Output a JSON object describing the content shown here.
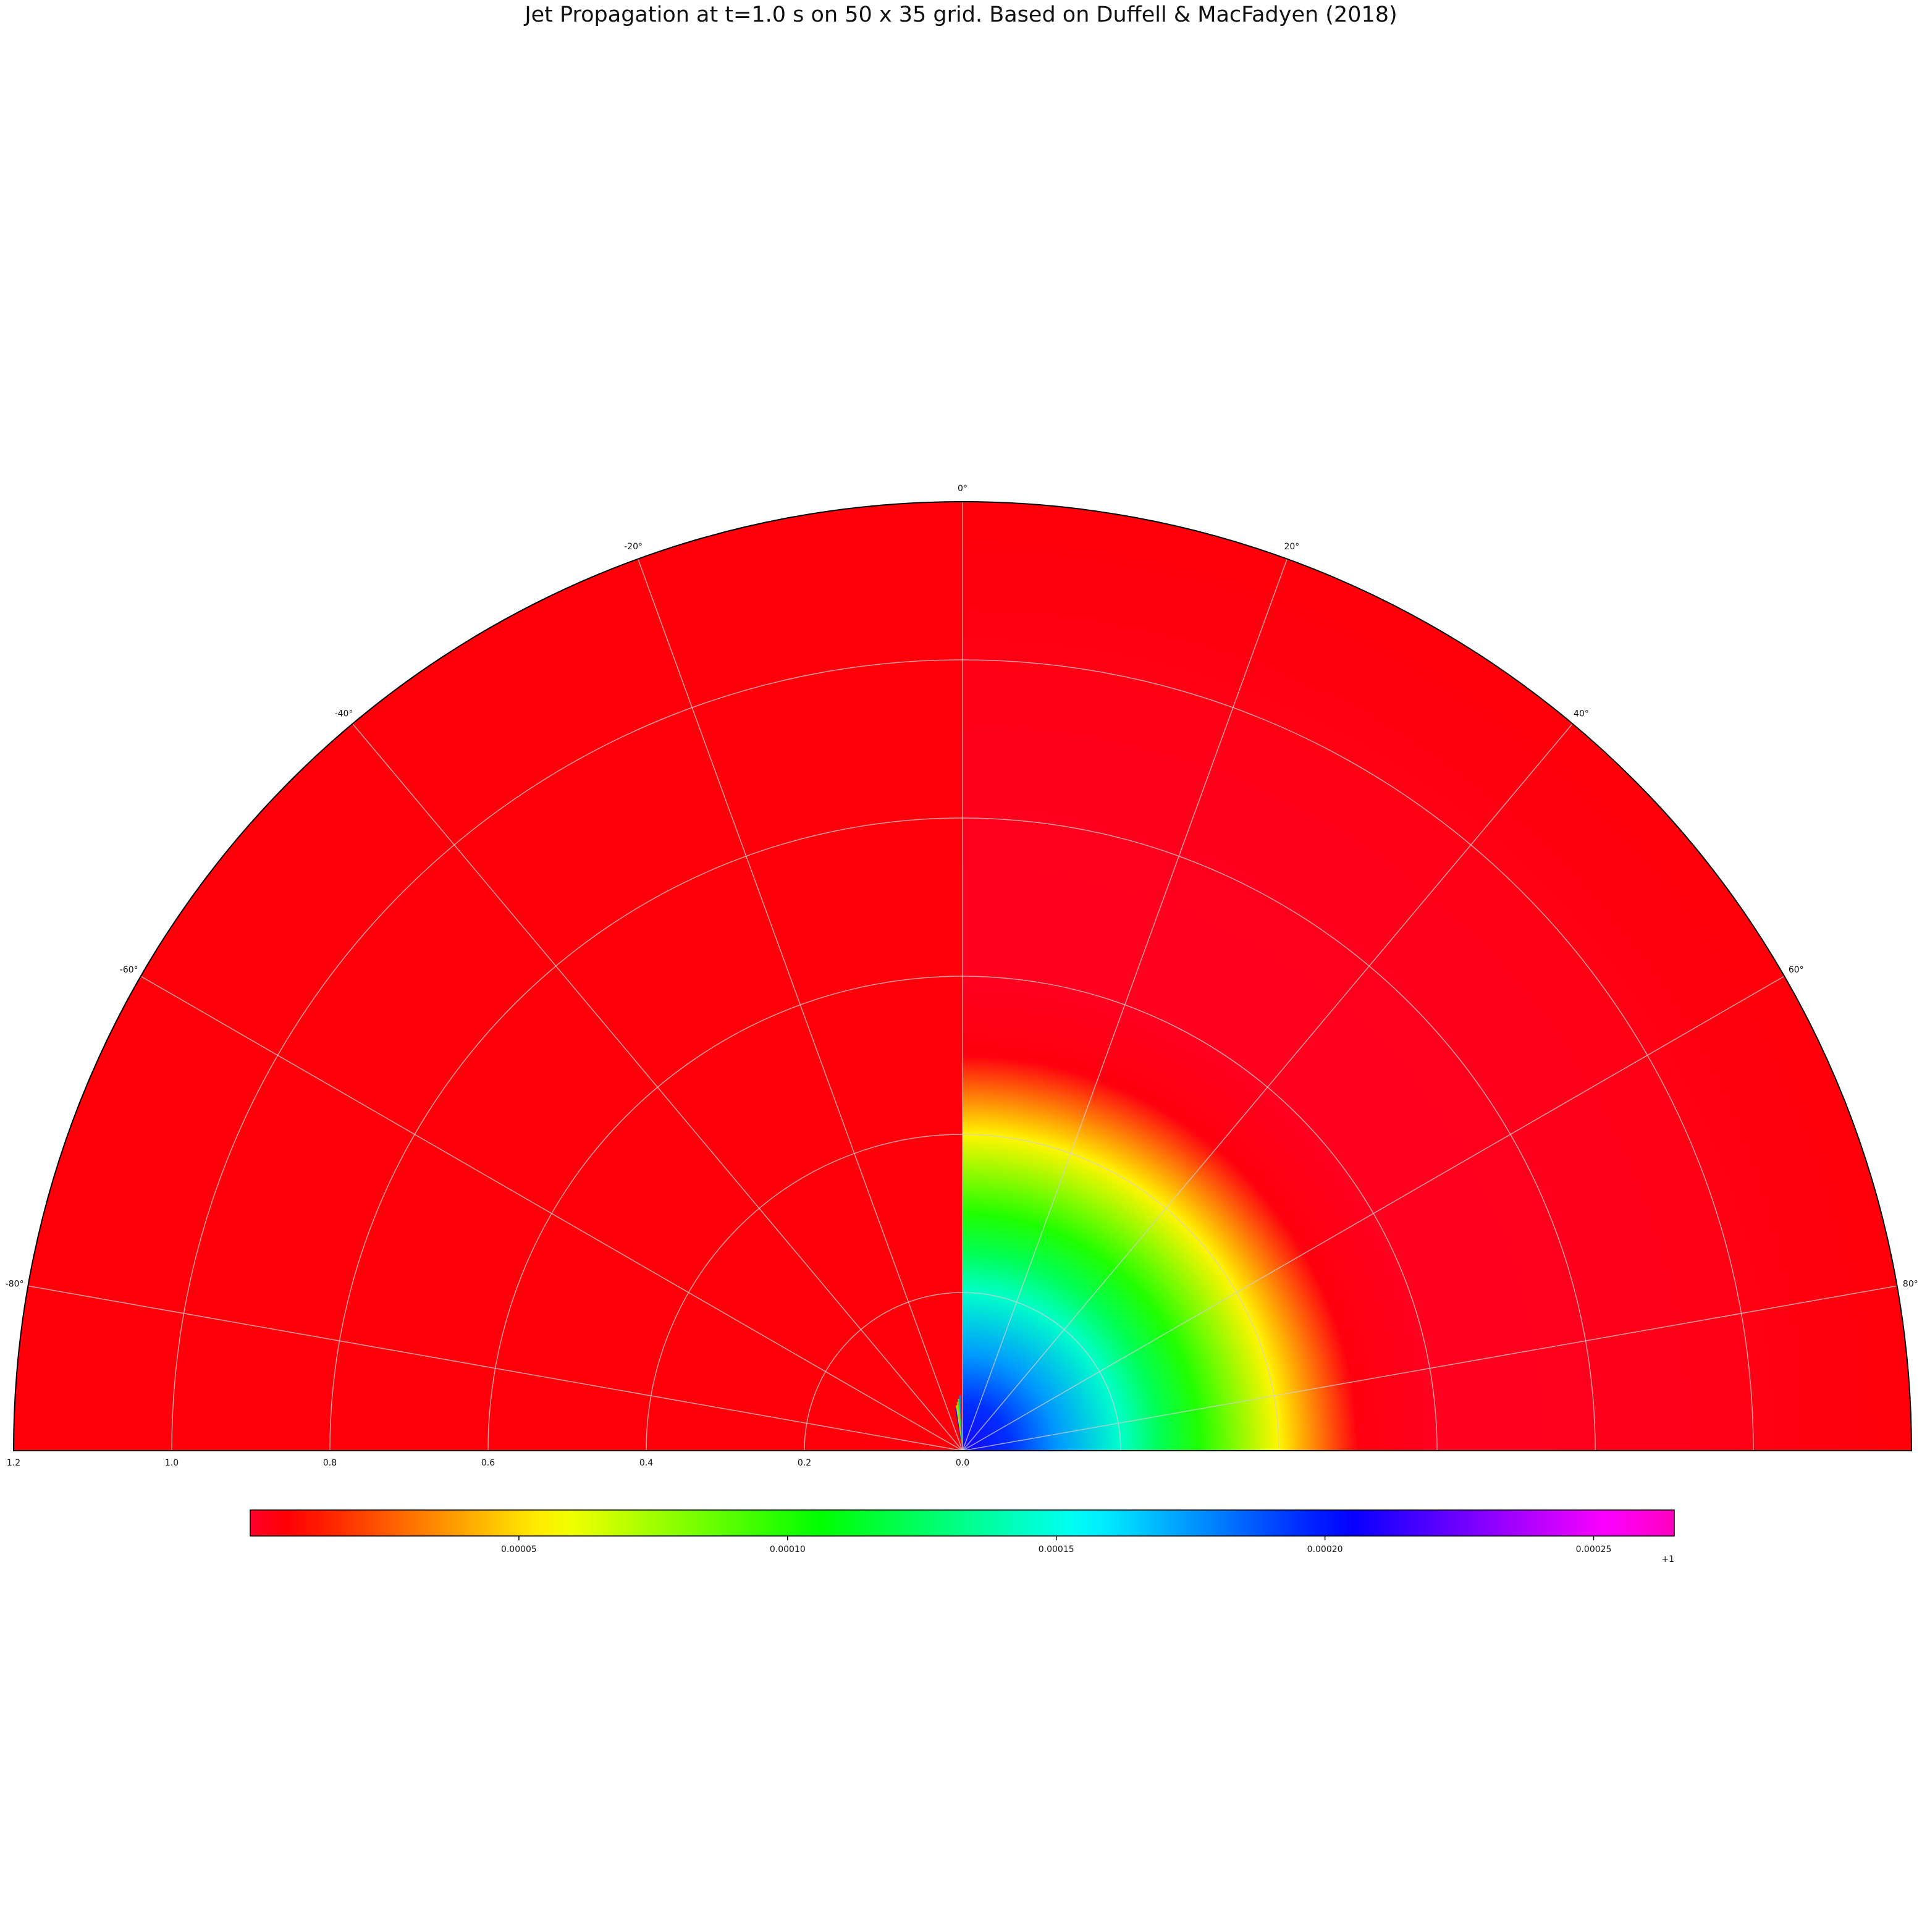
{
  "chart_data": {
    "type": "heatmap",
    "projection": "polar-half",
    "title": "Jet Propagation at t=1.0 s on 50 x 35 grid. Based on Duffell & MacFadyen (2018)",
    "theta_ticks": [
      {
        "deg": -80,
        "label": "-80°"
      },
      {
        "deg": -60,
        "label": "-60°"
      },
      {
        "deg": -40,
        "label": "-40°"
      },
      {
        "deg": -20,
        "label": "-20°"
      },
      {
        "deg": 0,
        "label": "0°"
      },
      {
        "deg": 20,
        "label": "20°"
      },
      {
        "deg": 40,
        "label": "40°"
      },
      {
        "deg": 60,
        "label": "60°"
      },
      {
        "deg": 80,
        "label": "80°"
      }
    ],
    "theta_range_deg": [
      -90,
      90
    ],
    "r_ticks": [
      {
        "value": 1.2,
        "label": "1.2"
      },
      {
        "value": 1.0,
        "label": "1.0"
      },
      {
        "value": 0.8,
        "label": "0.8"
      },
      {
        "value": 0.6,
        "label": "0.6"
      },
      {
        "value": 0.4,
        "label": "0.4"
      },
      {
        "value": 0.2,
        "label": "0.2"
      },
      {
        "value": 0.0,
        "label": "0.0"
      }
    ],
    "r_max": 1.2,
    "grid": true,
    "colormap": "gist_rainbow",
    "left_half_value": 6e-06,
    "profile": {
      "description_free": true,
      "r": [
        0.0,
        0.06,
        0.12,
        0.2,
        0.25,
        0.3,
        0.4,
        0.5,
        0.6,
        0.9,
        1.2
      ],
      "value": [
        0.000209,
        0.000195,
        0.000175,
        0.000145,
        0.000122,
        0.0001,
        5.5e-05,
        5e-06,
        2e-06,
        3e-06,
        6e-06
      ]
    },
    "colorbar": {
      "orientation": "horizontal",
      "vmin": 0.0,
      "vmax": 0.000265,
      "offset_label": "+1",
      "ticks": [
        {
          "value": 5e-05,
          "label": "0.00005"
        },
        {
          "value": 0.0001,
          "label": "0.00010"
        },
        {
          "value": 0.00015,
          "label": "0.00015"
        },
        {
          "value": 0.0002,
          "label": "0.00020"
        },
        {
          "value": 0.00025,
          "label": "0.00025"
        }
      ]
    }
  }
}
